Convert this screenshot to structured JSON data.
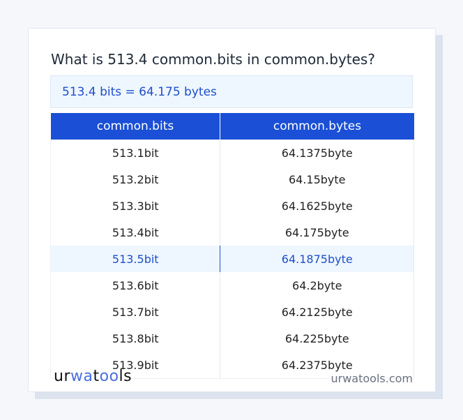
{
  "title": "What is 513.4 common.bits in common.bytes?",
  "result": "513.4 bits = 64.175 bytes",
  "table": {
    "headers": [
      "common.bits",
      "common.bytes"
    ],
    "rows": [
      [
        "513.1bit",
        "64.1375byte"
      ],
      [
        "513.2bit",
        "64.15byte"
      ],
      [
        "513.3bit",
        "64.1625byte"
      ],
      [
        "513.4bit",
        "64.175byte"
      ],
      [
        "513.5bit",
        "64.1875byte"
      ],
      [
        "513.6bit",
        "64.2byte"
      ],
      [
        "513.7bit",
        "64.2125byte"
      ],
      [
        "513.8bit",
        "64.225byte"
      ],
      [
        "513.9bit",
        "64.2375byte"
      ]
    ],
    "highlighted_row": 4
  },
  "footer": {
    "logo": "urwatools",
    "site": "urwatools.com"
  },
  "colors": {
    "accent": "#1a4fd6",
    "highlight_bg": "#eef6ff",
    "highlight_text": "#1f4fc8"
  }
}
